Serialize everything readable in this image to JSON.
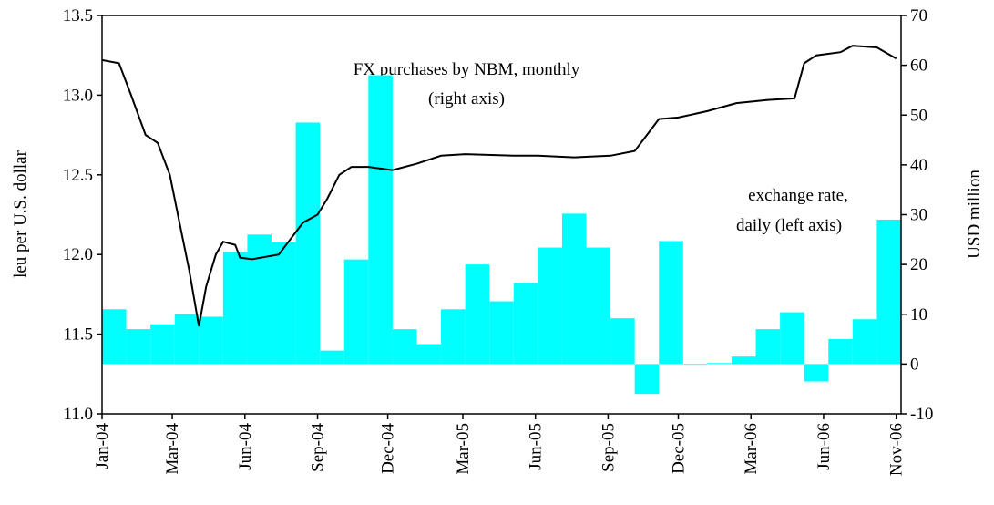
{
  "chart_data": {
    "type": "combo",
    "annotations": [
      "FX purchases by NBM, monthly",
      "(right axis)",
      "exchange rate,",
      "daily  (left axis)"
    ],
    "ylabel": "leu per U.S. dollar",
    "y2label": "USD million",
    "xlim": [
      0,
      33
    ],
    "xticks": [
      {
        "value": 0,
        "label": "Jan-04"
      },
      {
        "value": 2.9,
        "label": "Mar-04"
      },
      {
        "value": 5.9,
        "label": "Jun-04"
      },
      {
        "value": 8.9,
        "label": "Sep-04"
      },
      {
        "value": 11.8,
        "label": "Dec-04"
      },
      {
        "value": 14.9,
        "label": "Mar-05"
      },
      {
        "value": 17.9,
        "label": "Jun-05"
      },
      {
        "value": 20.9,
        "label": "Sep-05"
      },
      {
        "value": 23.8,
        "label": "Dec-05"
      },
      {
        "value": 26.8,
        "label": "Mar-06"
      },
      {
        "value": 29.8,
        "label": "Jun-06"
      },
      {
        "value": 32.8,
        "label": "Nov-06"
      }
    ],
    "ylim": [
      11.0,
      13.5
    ],
    "yticks": [
      {
        "value": 11.0,
        "label": "11.0"
      },
      11.5,
      {
        "value": 12.0,
        "label": "12.0"
      },
      12.5,
      {
        "value": 13.0,
        "label": "13.0"
      },
      13.5
    ],
    "y2lim": [
      -10,
      70
    ],
    "y2ticks": [
      -10,
      0,
      10,
      20,
      30,
      40,
      50,
      60,
      70
    ],
    "bars": {
      "axis": "y2",
      "color": "#00ffff",
      "values": [
        11,
        7,
        8,
        10,
        9.5,
        22.5,
        26,
        24.5,
        48.5,
        2.7,
        21,
        58,
        7,
        4,
        11,
        20,
        12.6,
        16.3,
        23.4,
        30.2,
        23.4,
        9.2,
        -6,
        24.7,
        0,
        0.2,
        1.5,
        7,
        10.4,
        -3.5,
        5,
        9,
        29
      ]
    },
    "line": {
      "color": "#000000",
      "x": [
        0,
        0.7,
        1.2,
        1.8,
        2.3,
        2.8,
        3.2,
        3.6,
        4.0,
        4.3,
        4.7,
        5.0,
        5.5,
        5.7,
        6.2,
        7.3,
        7.8,
        8.3,
        8.9,
        9.3,
        9.8,
        10.3,
        11.0,
        12.0,
        13.0,
        14.0,
        15.0,
        17.0,
        18.0,
        19.5,
        21,
        22,
        22.5,
        23.0,
        23.8,
        25,
        26.2,
        27.5,
        28.6,
        29,
        29.5,
        30.5,
        31,
        32,
        32.8
      ],
      "values": [
        13.22,
        13.2,
        13.0,
        12.75,
        12.7,
        12.5,
        12.2,
        11.9,
        11.55,
        11.8,
        12.0,
        12.08,
        12.06,
        11.98,
        11.97,
        12.0,
        12.1,
        12.2,
        12.25,
        12.35,
        12.5,
        12.55,
        12.55,
        12.53,
        12.57,
        12.62,
        12.63,
        12.62,
        12.62,
        12.61,
        12.62,
        12.65,
        12.75,
        12.85,
        12.86,
        12.9,
        12.95,
        12.97,
        12.98,
        13.2,
        13.25,
        13.27,
        13.31,
        13.3,
        13.23
      ]
    }
  }
}
